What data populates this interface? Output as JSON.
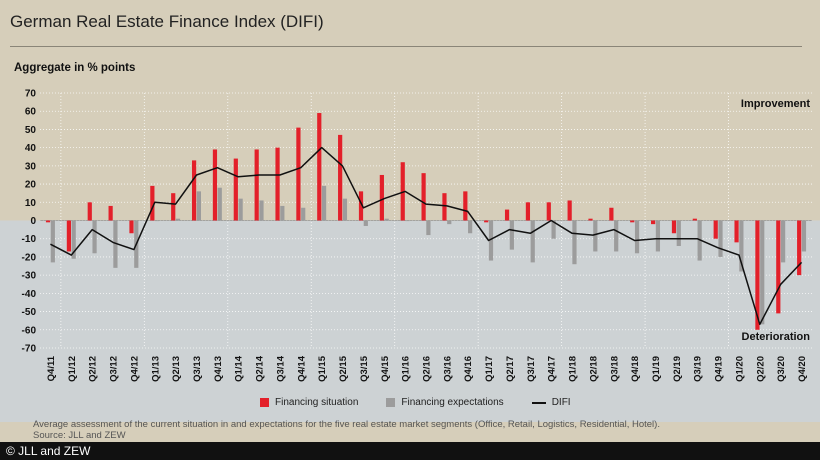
{
  "header": {
    "title": "German Real Estate Finance Index (DIFI)",
    "ylabel": "Aggregate in % points"
  },
  "notes": {
    "line1": "Average assessment of the current situation in and expectations for the five real estate market segments (Office, Retail, Logistics, Residential, Hotel).",
    "line2": "Source: JLL and ZEW"
  },
  "copyright": "© JLL and ZEW",
  "colors": {
    "situation": "#e3202a",
    "expectations": "#9c9c9c",
    "difi": "#111111",
    "upper_bg": "#d6ceba",
    "lower_bg": "#cdd2d4"
  },
  "chart_data": {
    "type": "bar",
    "title": "German Real Estate Finance Index (DIFI)",
    "ylabel": "Aggregate in % points",
    "ylim": [
      -70,
      70
    ],
    "yticks": [
      70,
      60,
      50,
      40,
      30,
      20,
      10,
      0,
      -10,
      -20,
      -30,
      -40,
      -50,
      -60,
      -70
    ],
    "annotations": {
      "top": "Improvement",
      "bottom": "Deterioration"
    },
    "categories": [
      "Q4/11",
      "Q1/12",
      "Q2/12",
      "Q3/12",
      "Q4/12",
      "Q1/13",
      "Q2/13",
      "Q3/13",
      "Q4/13",
      "Q1/14",
      "Q2/14",
      "Q3/14",
      "Q4/14",
      "Q1/15",
      "Q2/15",
      "Q3/15",
      "Q4/15",
      "Q1/16",
      "Q2/16",
      "Q3/16",
      "Q4/16",
      "Q1/17",
      "Q2/17",
      "Q3/17",
      "Q4/17",
      "Q1/18",
      "Q2/18",
      "Q3/18",
      "Q4/18",
      "Q1/19",
      "Q2/19",
      "Q3/19",
      "Q4/19",
      "Q1/20",
      "Q2/20",
      "Q3/20",
      "Q4/20"
    ],
    "series": [
      {
        "name": "Financing situation",
        "kind": "bar",
        "values": [
          -1,
          -17,
          10,
          8,
          -7,
          19,
          15,
          33,
          39,
          34,
          39,
          40,
          51,
          59,
          47,
          16,
          25,
          32,
          26,
          15,
          16,
          -1,
          6,
          10,
          10,
          11,
          1,
          7,
          -1,
          -2,
          -7,
          1,
          -10,
          -12,
          -60,
          -51,
          -30
        ]
      },
      {
        "name": "Financing expectations",
        "kind": "bar",
        "values": [
          -23,
          -21,
          -18,
          -26,
          -26,
          0,
          1,
          16,
          18,
          12,
          11,
          8,
          7,
          19,
          12,
          -3,
          1,
          0,
          -8,
          -2,
          -7,
          -22,
          -16,
          -23,
          -10,
          -24,
          -17,
          -17,
          -18,
          -17,
          -14,
          -22,
          -20,
          -28,
          -57,
          -23,
          -17
        ]
      },
      {
        "name": "DIFI",
        "kind": "line",
        "values": [
          -13,
          -19,
          -5,
          -12,
          -16,
          10,
          9,
          25,
          29,
          24,
          25,
          25,
          29,
          40,
          30,
          7,
          12,
          16,
          9,
          8,
          5,
          -11,
          -5,
          -7,
          0,
          -7,
          -8,
          -5,
          -11,
          -10,
          -10,
          -10,
          -15,
          -19,
          -57,
          -35,
          -23
        ]
      }
    ]
  }
}
